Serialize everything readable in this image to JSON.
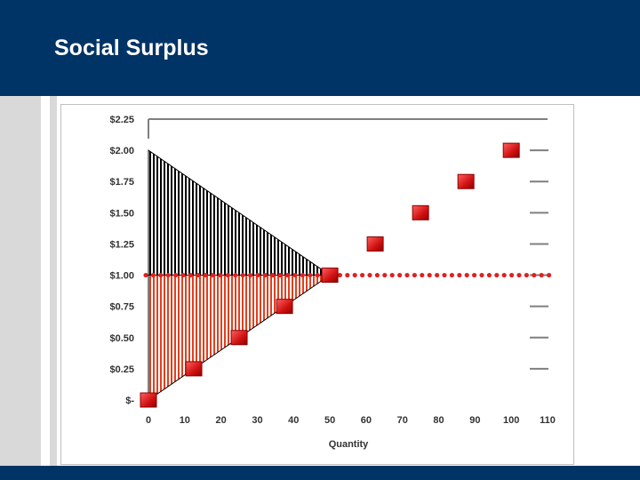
{
  "slide": {
    "title": "Social Surplus"
  },
  "colors": {
    "header": "#003366",
    "marker": "#e02020",
    "dots": "#e02020",
    "consumer_fill": "#000000",
    "producer_fill": "#e04020"
  },
  "chart_data": {
    "type": "scatter",
    "title": "",
    "xlabel": "Quantity",
    "ylabel": "",
    "x_ticks": [
      "0",
      "10",
      "20",
      "30",
      "40",
      "50",
      "60",
      "70",
      "80",
      "90",
      "100",
      "110"
    ],
    "y_ticks": [
      "$-",
      "$0.25",
      "$0.50",
      "$0.75",
      "$1.00",
      "$1.25",
      "$1.50",
      "$1.75",
      "$2.00",
      "$2.25"
    ],
    "xlim": [
      0,
      110
    ],
    "ylim": [
      0,
      2.25
    ],
    "series": [
      {
        "x": [
          0,
          12.5,
          25,
          37.5,
          50,
          62.5,
          75,
          87.5,
          100
        ],
        "y": [
          0,
          0.25,
          0.5,
          0.75,
          1.0,
          1.25,
          1.5,
          1.75,
          2.0
        ]
      }
    ],
    "price_line": 1.0,
    "consumer_surplus": {
      "x": [
        0,
        0,
        50
      ],
      "y": [
        2.0,
        1.0,
        1.0
      ]
    },
    "producer_surplus": {
      "x": [
        0,
        0,
        50
      ],
      "y": [
        0,
        1.0,
        1.0
      ]
    }
  }
}
